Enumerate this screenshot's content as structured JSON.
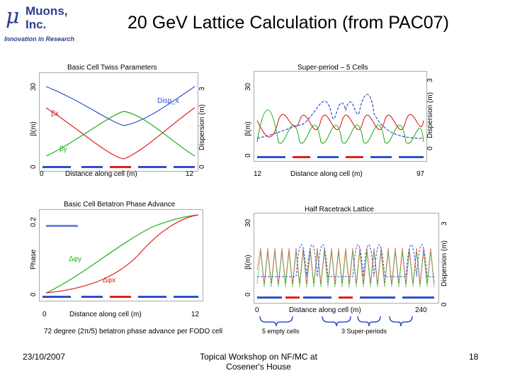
{
  "logo": {
    "symbol": "μ",
    "name_line1": "Muons,",
    "name_line2": "Inc.",
    "tagline": "Innovation in Research"
  },
  "title": "20 GeV Lattice Calculation (from PAC07)",
  "panels": {
    "twiss": {
      "title": "Basic Cell Twiss Parameters",
      "ylabel_left": "β(m)",
      "ylabel_right": "Dispersion (m)",
      "left_ticks": [
        "30",
        "0"
      ],
      "right_ticks": [
        "3",
        "0"
      ],
      "x_ticks": [
        "0",
        "12"
      ],
      "xlabel": "Distance along cell (m)",
      "curve_labels": {
        "disp": "Disp_x",
        "bx": "βx",
        "by": "βy"
      }
    },
    "superperiod": {
      "title": "Super-period – 5 Cells",
      "ylabel_left": "β(m)",
      "ylabel_right": "Dispersion (m)",
      "left_ticks": [
        "30",
        "0"
      ],
      "right_ticks": [
        "3",
        "0"
      ],
      "x_ticks": [
        "12",
        "97"
      ],
      "xlabel": "Distance along cell (m)"
    },
    "phase": {
      "title": "Basic Cell Betatron Phase Advance",
      "ylabel_left": "Phase",
      "left_ticks": [
        "0.2",
        "0"
      ],
      "x_ticks": [
        "0",
        "12"
      ],
      "xlabel": "Distance along cell (m)",
      "curve_labels": {
        "py": "Δφy",
        "px": "Δφx"
      }
    },
    "racetrack": {
      "title": "Half Racetrack Lattice",
      "ylabel_left": "β(m)",
      "ylabel_right": "Dispersion (m)",
      "left_ticks": [
        "30",
        "0"
      ],
      "right_ticks": [
        "3",
        "0"
      ],
      "x_ticks": [
        "0",
        "240"
      ],
      "xlabel": "Distance along cell (m)",
      "annotations": {
        "empty": "5 empty cells",
        "super": "3 Super-periods"
      }
    }
  },
  "caption": "72 degree (2π/5) betatron phase advance per FODO cell",
  "footer": {
    "date": "23/10/2007",
    "workshop_line1": "Topical Workshop on NF/MC at",
    "workshop_line2": "Cosener's House",
    "page": "18"
  },
  "colors": {
    "blue": "#3050d0",
    "red": "#e02020",
    "green": "#20b020",
    "brand": "#2a3f8f"
  }
}
